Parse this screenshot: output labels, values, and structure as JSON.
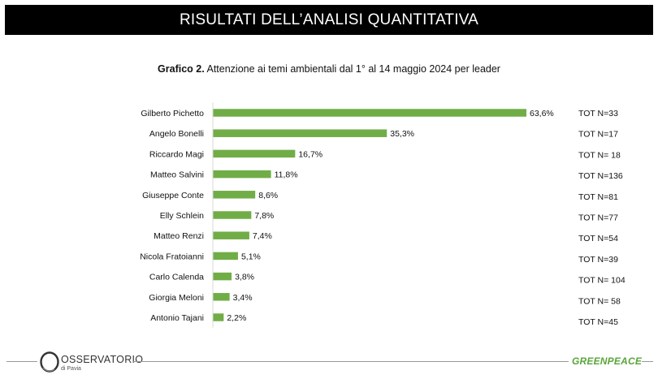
{
  "header": {
    "title": "RISULTATI DELL’ANALISI QUANTITATIVA"
  },
  "chart_title": {
    "bold_part": "Grafico 2.",
    "rest": " Attenzione ai temi ambientali dal 1° al 14 maggio 2024 per leader"
  },
  "colors": {
    "bar": "#70ad47",
    "header_bg": "#000000",
    "greenpeace": "#5aa53a"
  },
  "chart_data": {
    "type": "bar",
    "orientation": "horizontal",
    "categories": [
      "Gilberto Pichetto",
      "Angelo Bonelli",
      "Riccardo Magi",
      "Matteo Salvini",
      "Giuseppe Conte",
      "Elly Schlein",
      "Matteo Renzi",
      "Nicola Fratoianni",
      "Carlo Calenda",
      "Giorgia Meloni",
      "Antonio Tajani"
    ],
    "values": [
      63.6,
      35.3,
      16.7,
      11.8,
      8.6,
      7.8,
      7.4,
      5.1,
      3.8,
      3.4,
      2.2
    ],
    "value_labels": [
      "63,6%",
      "35,3%",
      "16,7%",
      "11,8%",
      "8,6%",
      "7,8%",
      "7,4%",
      "5,1%",
      "3,8%",
      "3,4%",
      "2,2%"
    ],
    "totals": [
      "TOT N=33",
      "TOT N=17",
      "TOT N= 18",
      "TOT N=136",
      "TOT N=81",
      "TOT N=77",
      "TOT N=54",
      "TOT N=39",
      "TOT N= 104",
      "TOT N= 58",
      "TOT N=45"
    ],
    "xlim": [
      0,
      63.6
    ],
    "grid": false,
    "legend": "none"
  },
  "footer": {
    "logo_main": "OSSERVATORIO",
    "logo_sub": "di Pavia",
    "greenpeace": "GREENPEACE"
  }
}
